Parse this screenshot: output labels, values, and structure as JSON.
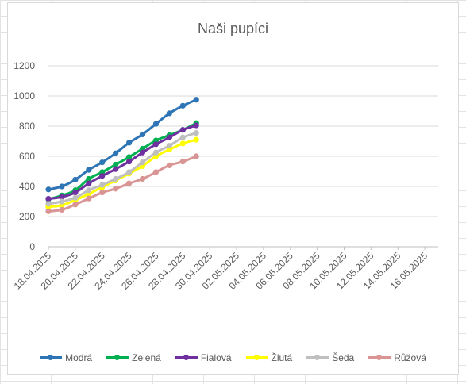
{
  "chart_data": {
    "type": "line",
    "title": "Naši pupíci",
    "xlabel": "",
    "ylabel": "",
    "ylim": [
      0,
      1200
    ],
    "yticks": [
      "0",
      "200",
      "400",
      "600",
      "800",
      "1000",
      "1200"
    ],
    "xlim": [
      "18.04.2025",
      "17.05.2025"
    ],
    "xtick_labels": [
      "18.04.2025",
      "20.04.2025",
      "22.04.2025",
      "24.04.2025",
      "26.04.2025",
      "28.04.2025",
      "30.04.2025",
      "02.05.2025",
      "04.05.2025",
      "06.05.2025",
      "08.05.2025",
      "10.05.2025",
      "12.05.2025",
      "14.05.2025",
      "16.05.2025"
    ],
    "x": [
      "18.04.2025",
      "19.04.2025",
      "20.04.2025",
      "21.04.2025",
      "22.04.2025",
      "23.04.2025",
      "24.04.2025",
      "25.04.2025",
      "26.04.2025",
      "27.04.2025",
      "28.04.2025",
      "29.04.2025"
    ],
    "grid": "horizontal",
    "legend": "bottom",
    "series": [
      {
        "name": "Modrá",
        "color": "#2e75b6",
        "values": [
          380,
          400,
          445,
          510,
          560,
          620,
          690,
          745,
          815,
          885,
          935,
          975
        ]
      },
      {
        "name": "Zelená",
        "color": "#00b050",
        "values": [
          315,
          340,
          375,
          450,
          495,
          545,
          595,
          650,
          705,
          740,
          775,
          820
        ]
      },
      {
        "name": "Fialová",
        "color": "#7030a0",
        "values": [
          318,
          330,
          360,
          420,
          470,
          515,
          565,
          625,
          680,
          725,
          775,
          805
        ]
      },
      {
        "name": "Žlutá",
        "color": "#ffff00",
        "values": [
          265,
          275,
          310,
          350,
          395,
          440,
          485,
          535,
          600,
          645,
          685,
          710
        ]
      },
      {
        "name": "Šedá",
        "color": "#bfbfbf",
        "values": [
          285,
          300,
          325,
          375,
          410,
          450,
          495,
          560,
          625,
          670,
          725,
          755
        ]
      },
      {
        "name": "Růžová",
        "color": "#d99594",
        "values": [
          235,
          245,
          280,
          320,
          360,
          385,
          420,
          450,
          495,
          540,
          565,
          600
        ]
      }
    ]
  }
}
